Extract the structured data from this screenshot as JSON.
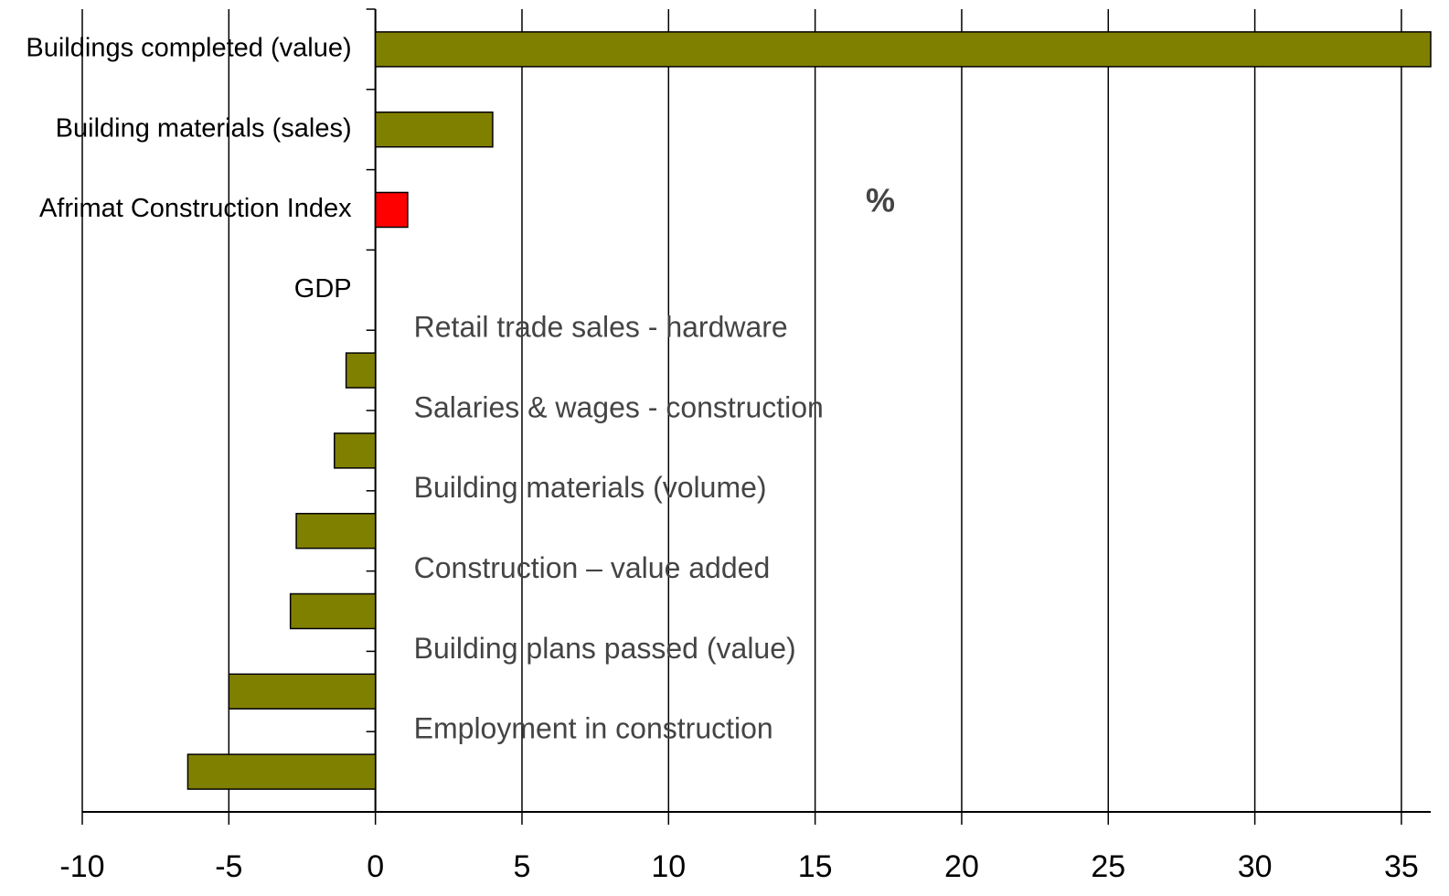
{
  "chart_data": {
    "type": "barh",
    "categories": [
      "Buildings completed  (value)",
      "Building materials (sales)",
      "Afrimat Construction Index",
      "GDP",
      "Retail trade sales - hardware",
      "Salaries & wages - construction",
      "Building materials (volume)",
      "Construction – value added",
      "Building plans passed (value)",
      "Employment in construction"
    ],
    "values": [
      36,
      4.0,
      1.1,
      0,
      -1.0,
      -1.4,
      -2.7,
      -2.9,
      -5.0,
      -6.4
    ],
    "colors": [
      "#808000",
      "#808000",
      "#ff0000",
      "#808000",
      "#808000",
      "#808000",
      "#808000",
      "#808000",
      "#808000",
      "#808000"
    ],
    "annotation": "%",
    "xlim": [
      -10,
      36
    ],
    "xticks": [
      -10,
      -5,
      0,
      5,
      10,
      15,
      20,
      25,
      30,
      35
    ],
    "grid": true
  }
}
